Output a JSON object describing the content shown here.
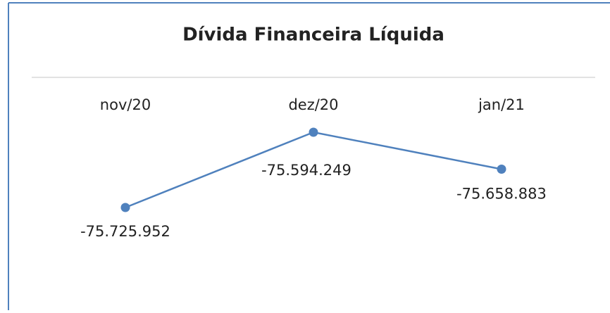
{
  "chart_data": {
    "type": "line",
    "title": "Dívida Financeira Líquida",
    "categories": [
      "nov/20",
      "dez/20",
      "jan/21"
    ],
    "series": [
      {
        "color": "#4f81bd",
        "values": [
          -75725952,
          -75594249,
          -75658883
        ],
        "value_labels": [
          "-75.725.952",
          "-75.594.249",
          "-75.658.883"
        ]
      }
    ]
  }
}
